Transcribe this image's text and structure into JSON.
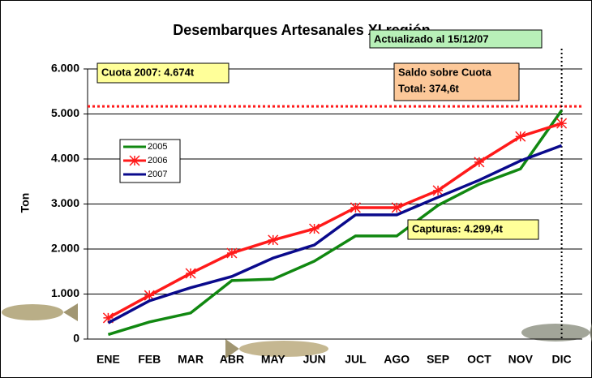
{
  "chart_data": {
    "type": "line",
    "title": "Desembarques Artesanales XI región",
    "y_label": "Ton",
    "categories": [
      "ENE",
      "FEB",
      "MAR",
      "ABR",
      "MAY",
      "JUN",
      "JUL",
      "AGO",
      "SEP",
      "OCT",
      "NOV",
      "DIC"
    ],
    "series": [
      {
        "name": "2005",
        "color": "#118811",
        "values": [
          100,
          380,
          580,
          1300,
          1330,
          1730,
          2290,
          2290,
          2970,
          3440,
          3780,
          5080
        ]
      },
      {
        "name": "2006",
        "color": "#ff1a1a",
        "marker": "star",
        "values": [
          470,
          970,
          1460,
          1910,
          2200,
          2450,
          2920,
          2920,
          3300,
          3930,
          4500,
          4790
        ]
      },
      {
        "name": "2007",
        "color": "#0a0a8c",
        "values": [
          360,
          850,
          1140,
          1390,
          1800,
          2090,
          2760,
          2760,
          3150,
          3530,
          3960,
          4300
        ]
      }
    ],
    "ylim": [
      0,
      6000
    ],
    "yticks": [
      0,
      {
        "value": 1000,
        "label": "1.000"
      },
      {
        "value": 2000,
        "label": "2.000"
      },
      {
        "value": 3000,
        "label": "3.000"
      },
      {
        "value": 4000,
        "label": "4.000"
      },
      {
        "value": 5000,
        "label": "5.000"
      },
      {
        "value": 6000,
        "label": "6.000"
      }
    ],
    "grid": true,
    "reference_line": {
      "value": 5170,
      "color": "#ff1a1a"
    },
    "annotations": {
      "updated": "Actualizado al 15/12/07",
      "quota": "Cuota 2007: 4.674t",
      "balance": [
        "Saldo sobre Cuota",
        "Total: 374,6t"
      ],
      "catch": "Capturas: 4.299,4t"
    }
  }
}
